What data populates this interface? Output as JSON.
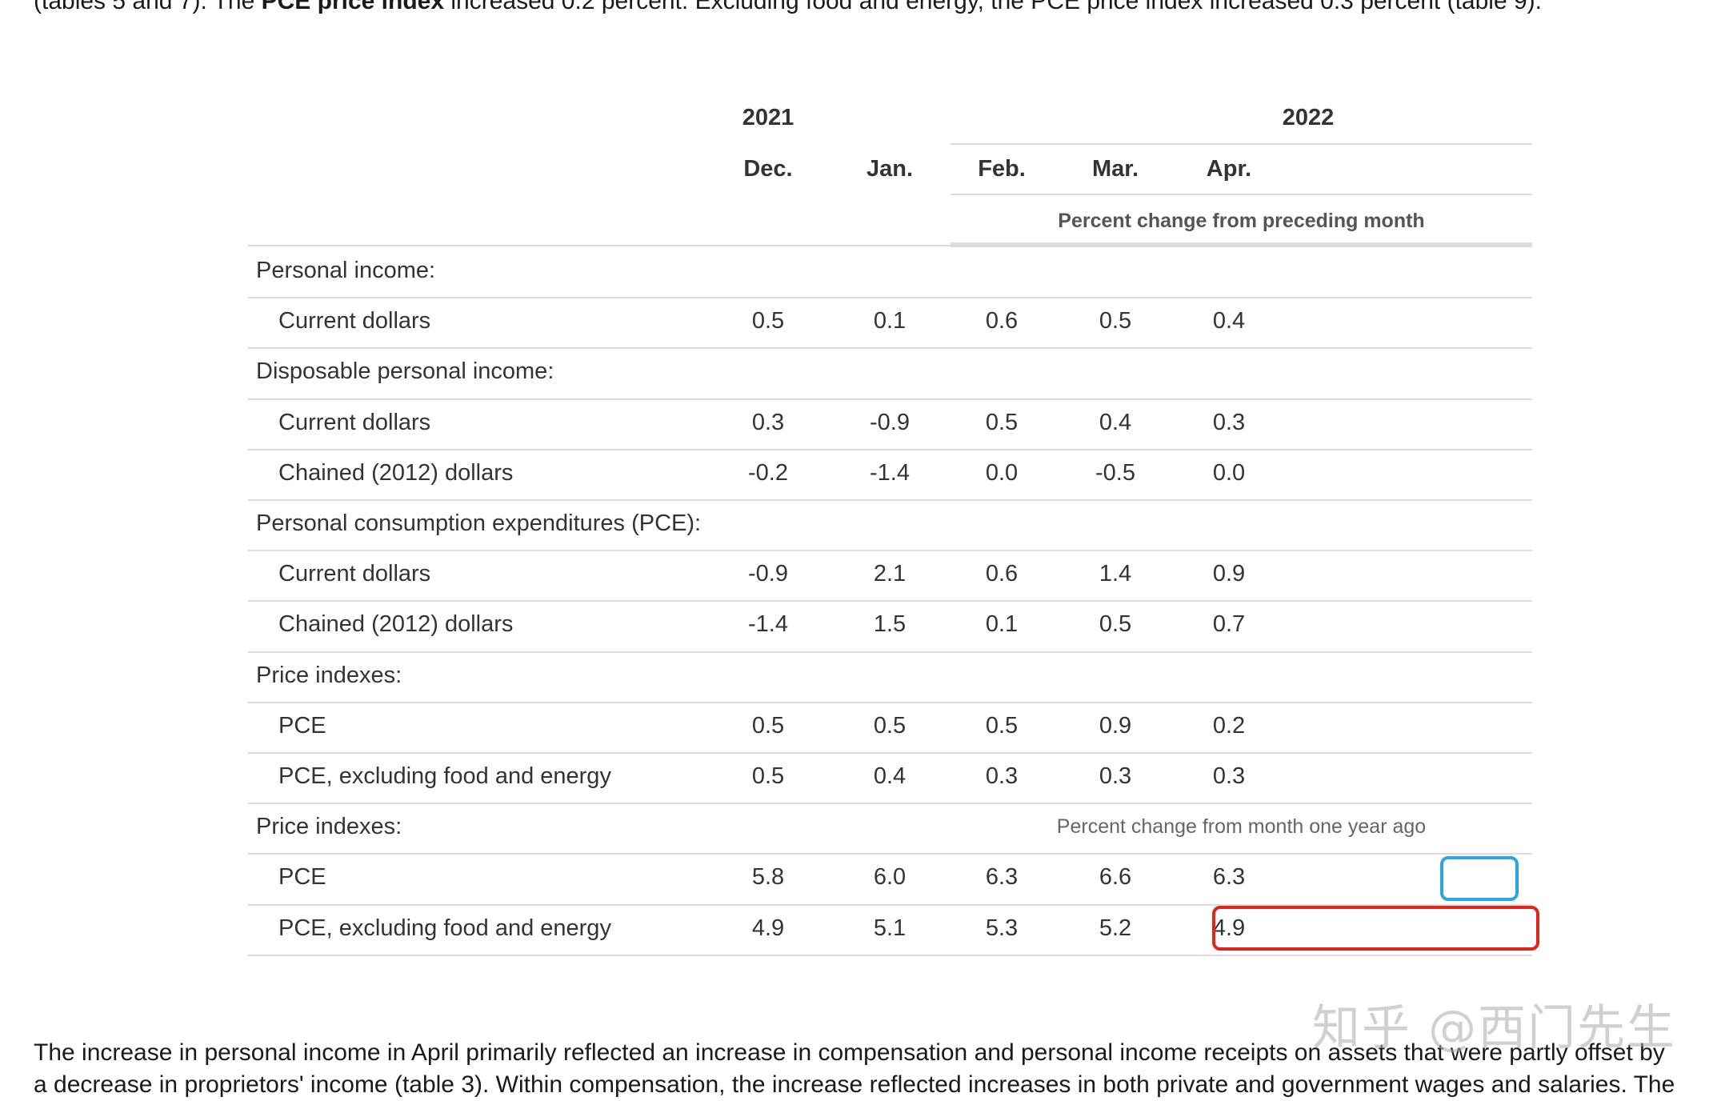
{
  "paragraphs": {
    "top_prefix": "(tables 5 and 7). The ",
    "top_bold": "PCE price index",
    "top_suffix": " increased 0.2 percent. Excluding food and energy, the PCE price index increased 0.3 percent (table 9).",
    "bottom_line1": "The increase in personal income in April primarily reflected an increase in compensation and personal income receipts on assets that were partly offset by",
    "bottom_line2": "a decrease in proprietors' income (table 3). Within compensation, the increase reflected increases in both private and government wages and salaries. The"
  },
  "table": {
    "years": [
      "2021",
      "2022"
    ],
    "months": [
      "Dec.",
      "Jan.",
      "Feb.",
      "Mar.",
      "Apr."
    ],
    "unit_monthly": "Percent change from preceding month",
    "unit_yearly": "Percent change from month one year ago",
    "rows": [
      {
        "label": "Personal income:",
        "indent": false,
        "values": []
      },
      {
        "label": "Current dollars",
        "indent": true,
        "values": [
          "0.5",
          "0.1",
          "0.6",
          "0.5",
          "0.4"
        ]
      },
      {
        "label": "Disposable personal income:",
        "indent": false,
        "values": []
      },
      {
        "label": "Current dollars",
        "indent": true,
        "values": [
          "0.3",
          "-0.9",
          "0.5",
          "0.4",
          "0.3"
        ]
      },
      {
        "label": "Chained (2012) dollars",
        "indent": true,
        "values": [
          "-0.2",
          "-1.4",
          "0.0",
          "-0.5",
          "0.0"
        ]
      },
      {
        "label": "Personal consumption expenditures (PCE):",
        "indent": false,
        "values": []
      },
      {
        "label": "Current dollars",
        "indent": true,
        "values": [
          "-0.9",
          "2.1",
          "0.6",
          "1.4",
          "0.9"
        ]
      },
      {
        "label": "Chained (2012) dollars",
        "indent": true,
        "values": [
          "-1.4",
          "1.5",
          "0.1",
          "0.5",
          "0.7"
        ]
      },
      {
        "label": "Price indexes:",
        "indent": false,
        "values": []
      },
      {
        "label": "PCE",
        "indent": true,
        "values": [
          "0.5",
          "0.5",
          "0.5",
          "0.9",
          "0.2"
        ]
      },
      {
        "label": "PCE, excluding food and energy",
        "indent": true,
        "values": [
          "0.5",
          "0.4",
          "0.3",
          "0.3",
          "0.3"
        ]
      },
      {
        "label": "Price indexes:",
        "indent": false,
        "values": [],
        "unit": "yearly"
      },
      {
        "label": "PCE",
        "indent": true,
        "values": [
          "5.8",
          "6.0",
          "6.3",
          "6.6",
          "6.3"
        ]
      },
      {
        "label": "PCE, excluding food and energy",
        "indent": true,
        "values": [
          "4.9",
          "5.1",
          "5.3",
          "5.2",
          "4.9"
        ]
      }
    ]
  },
  "highlights": {
    "blue_color": "#2aa6e0",
    "red_color": "#e0251b"
  },
  "watermark": "知乎 @西门先生"
}
